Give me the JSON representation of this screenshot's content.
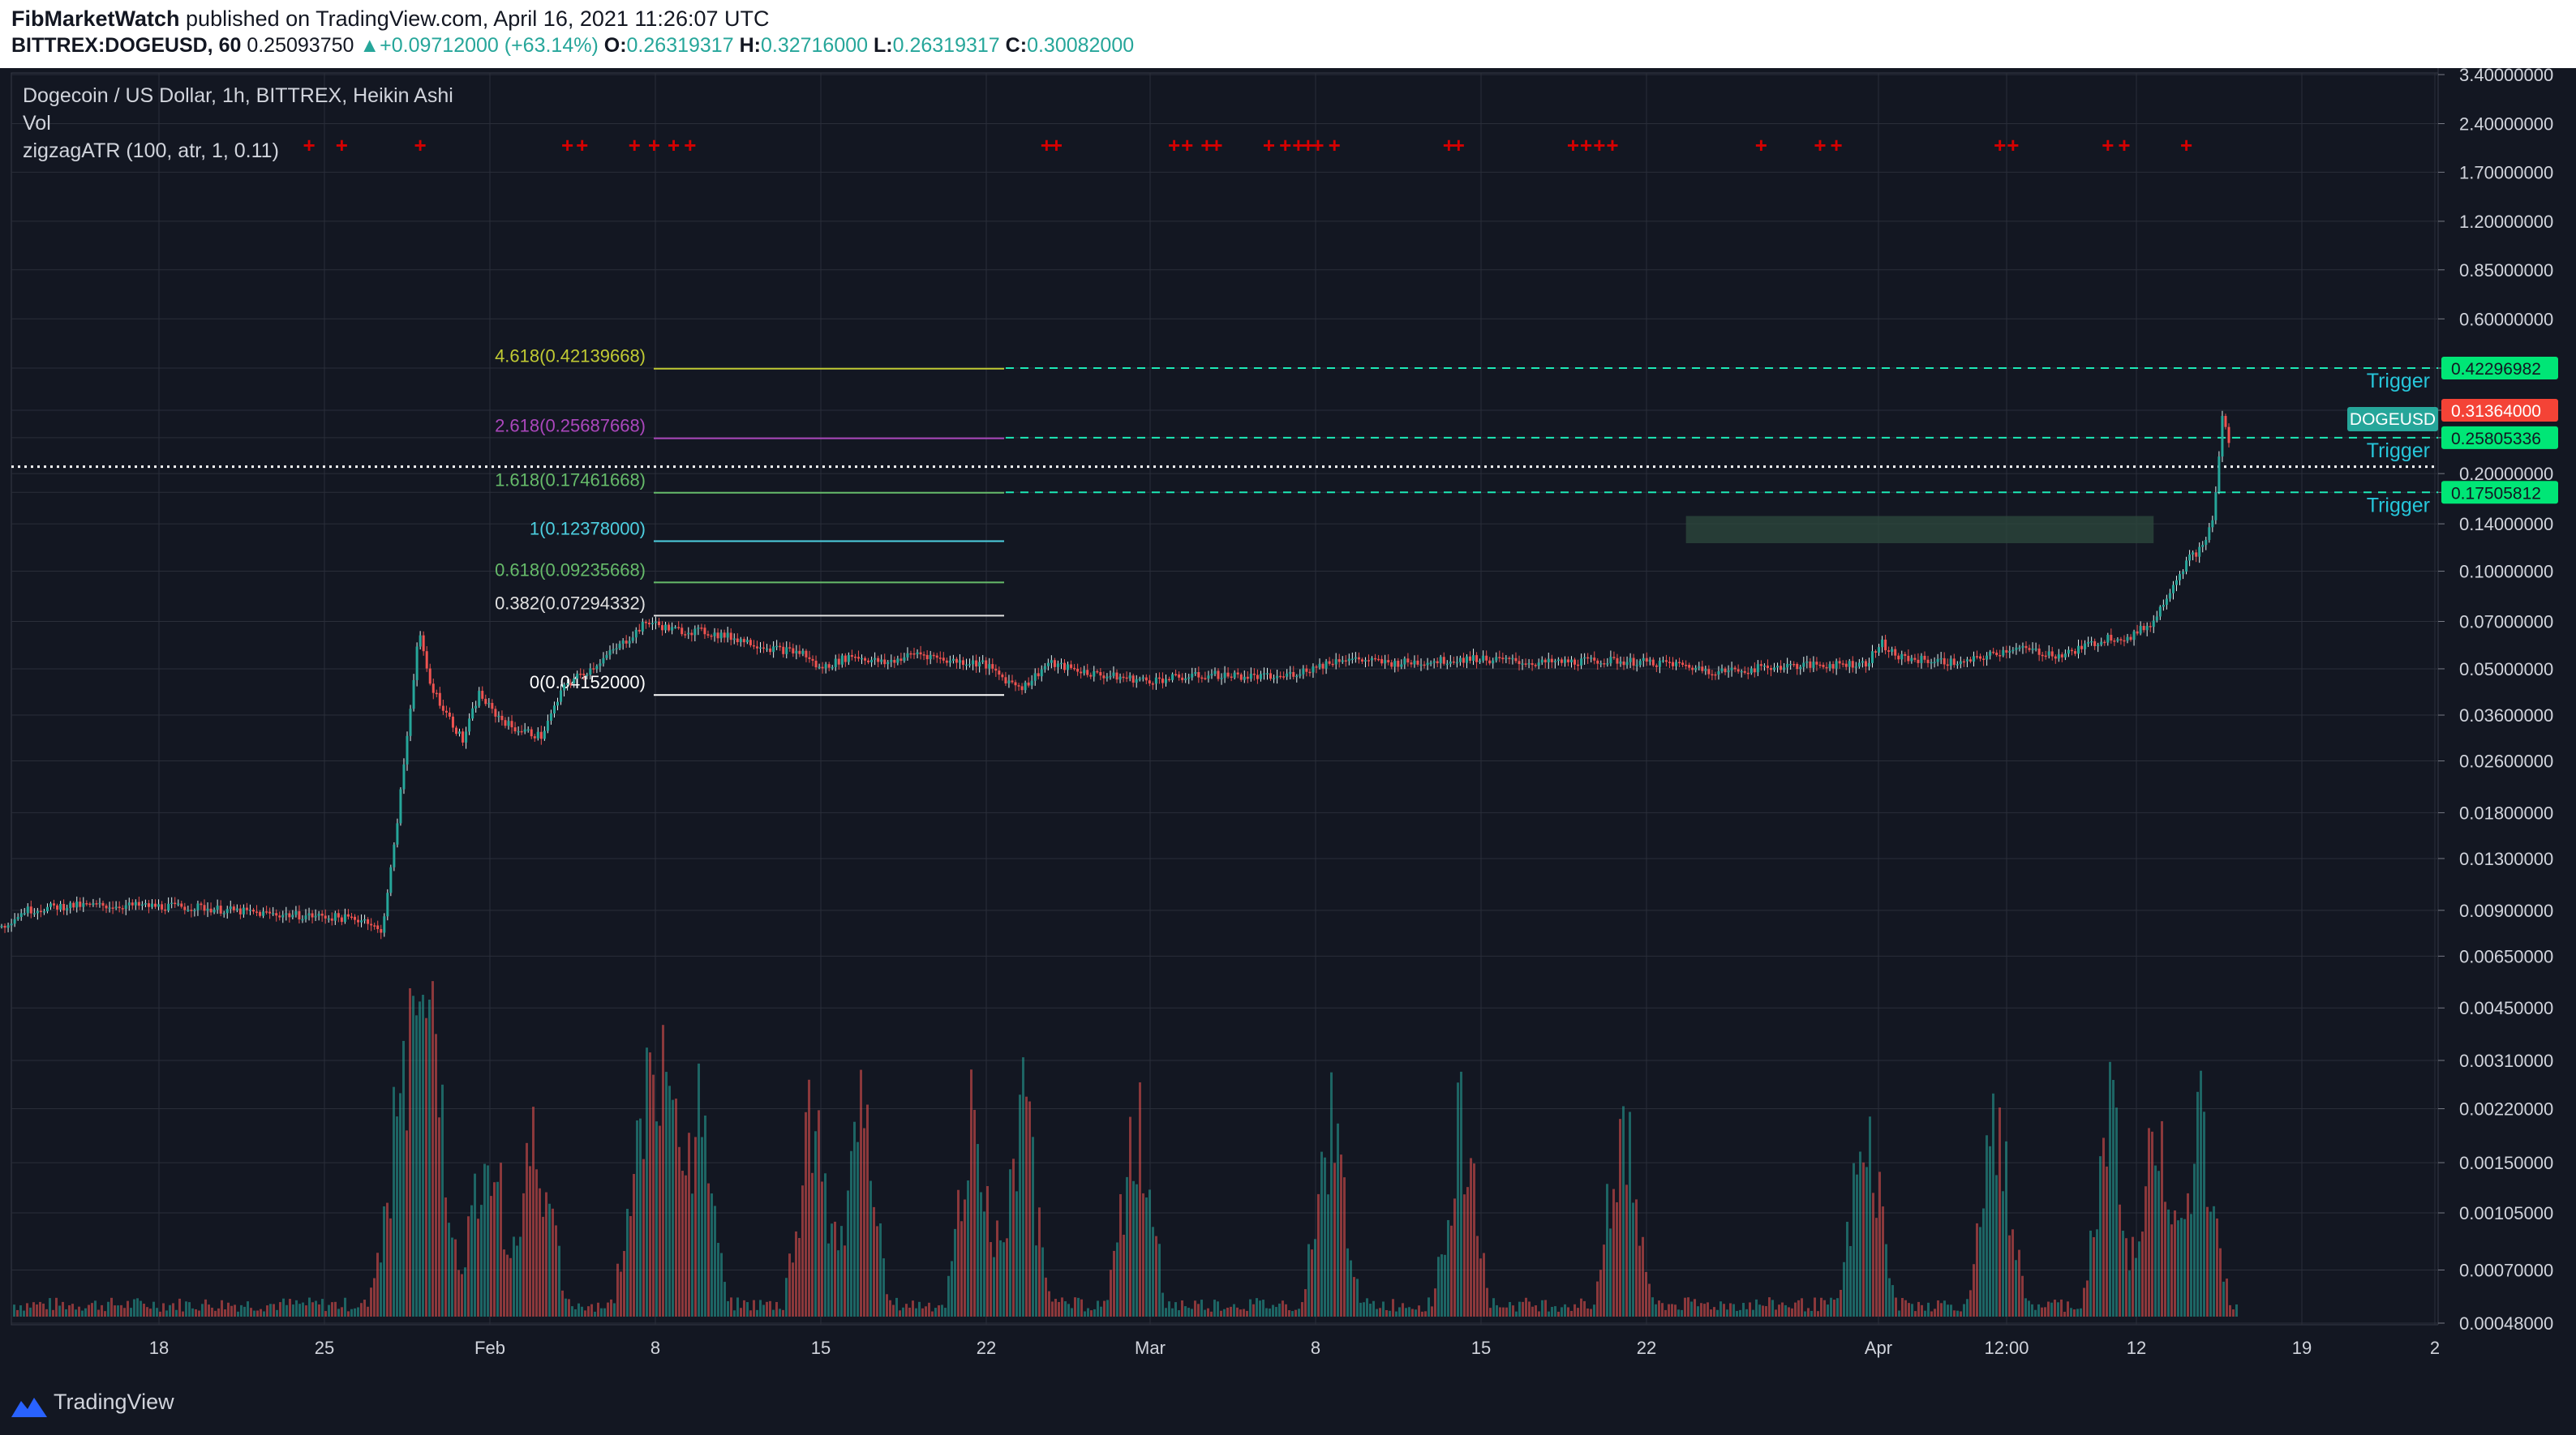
{
  "header": {
    "publisher": "FibMarketWatch",
    "published_text": " published on TradingView.com, April 16, 2021 11:26:07 UTC",
    "symbol": "BITTREX:DOGEUSD, 60",
    "price": "0.25093750",
    "change_arrow": "▲",
    "change": "+0.09712000 (+63.14%)",
    "o_label": "O:",
    "o_value": "0.26319317",
    "h_label": "H:",
    "h_value": "0.32716000",
    "l_label": "L:",
    "l_value": "0.26319317",
    "c_label": "C:",
    "c_value": "0.30082000"
  },
  "legend": {
    "title": "Dogecoin / US Dollar, 1h, BITTREX, Heikin Ashi",
    "vol": "Vol",
    "indicator": "zigzagATR (100, atr, 1, 0.11)"
  },
  "footer": {
    "brand": "TradingView"
  },
  "colors": {
    "background": "#131722",
    "grid": "#2a2e39",
    "up": "#26a69a",
    "down": "#ef5350",
    "candle_light": "#e0f2f1",
    "trigger": "#26c6da",
    "level_green": "#1de9b6",
    "tag_green": "#00e676",
    "tag_red": "#f44336",
    "tag_teal": "#26a69a"
  },
  "chart_data": {
    "type": "candlestick",
    "scale": "log",
    "y_ticks": [
      "3.40000000",
      "2.40000000",
      "1.70000000",
      "1.20000000",
      "0.85000000",
      "0.60000000",
      "0.42296982",
      "0.31364000",
      "0.25805336",
      "0.20000000",
      "0.17505812",
      "0.14000000",
      "0.10000000",
      "0.07000000",
      "0.05000000",
      "0.03600000",
      "0.02600000",
      "0.01800000",
      "0.01300000",
      "0.00900000",
      "0.00650000",
      "0.00450000",
      "0.00310000",
      "0.00220000",
      "0.00150000",
      "0.00105000",
      "0.00070000",
      "0.00048000"
    ],
    "x_ticks": [
      "18",
      "25",
      "Feb",
      "8",
      "15",
      "22",
      "Mar",
      "8",
      "15",
      "22",
      "Apr",
      "12:00",
      "12",
      "19",
      "2"
    ],
    "fib_levels": [
      {
        "label": "4.618(0.42139668)",
        "value": 0.42139668,
        "color": "#c0ca33"
      },
      {
        "label": "2.618(0.25687668)",
        "value": 0.25687668,
        "color": "#ab47bc"
      },
      {
        "label": "1.618(0.17461668)",
        "value": 0.17461668,
        "color": "#66bb6a"
      },
      {
        "label": "1(0.12378000)",
        "value": 0.12378,
        "color": "#4dd0e1"
      },
      {
        "label": "0.618(0.09235668)",
        "value": 0.09235668,
        "color": "#66bb6a"
      },
      {
        "label": "0.382(0.07294332)",
        "value": 0.07294332,
        "color": "#e0e0e0"
      },
      {
        "label": "0(0.04152000)",
        "value": 0.04152,
        "color": "#ffffff"
      }
    ],
    "trigger_lines": [
      {
        "label": "Trigger",
        "value": 0.42296982,
        "tag": "0.42296982"
      },
      {
        "label": "Trigger",
        "value": 0.25805336,
        "tag": "0.25805336"
      },
      {
        "label": "Trigger",
        "value": 0.17505812,
        "tag": "0.17505812"
      }
    ],
    "last_price": {
      "value": 0.31364,
      "tag": "0.31364000",
      "symbol": "DOGEUSD"
    },
    "dotted_price": 0.21,
    "price_path": [
      [
        0,
        0.008
      ],
      [
        14,
        0.009
      ],
      [
        40,
        0.0093
      ],
      [
        80,
        0.0093
      ],
      [
        120,
        0.0092
      ],
      [
        160,
        0.0088
      ],
      [
        200,
        0.0086
      ],
      [
        224,
        0.0084
      ],
      [
        232,
        0.0076
      ],
      [
        240,
        0.014
      ],
      [
        247,
        0.028
      ],
      [
        255,
        0.065
      ],
      [
        262,
        0.045
      ],
      [
        270,
        0.038
      ],
      [
        282,
        0.03
      ],
      [
        292,
        0.042
      ],
      [
        300,
        0.037
      ],
      [
        312,
        0.033
      ],
      [
        330,
        0.031
      ],
      [
        345,
        0.045
      ],
      [
        360,
        0.05
      ],
      [
        380,
        0.06
      ],
      [
        395,
        0.07
      ],
      [
        410,
        0.066
      ],
      [
        430,
        0.065
      ],
      [
        450,
        0.062
      ],
      [
        470,
        0.058
      ],
      [
        490,
        0.056
      ],
      [
        500,
        0.05
      ],
      [
        520,
        0.055
      ],
      [
        540,
        0.052
      ],
      [
        560,
        0.056
      ],
      [
        580,
        0.053
      ],
      [
        600,
        0.052
      ],
      [
        615,
        0.046
      ],
      [
        625,
        0.044
      ],
      [
        640,
        0.052
      ],
      [
        670,
        0.048
      ],
      [
        700,
        0.046
      ],
      [
        740,
        0.048
      ],
      [
        780,
        0.047
      ],
      [
        800,
        0.05
      ],
      [
        820,
        0.054
      ],
      [
        850,
        0.052
      ],
      [
        880,
        0.053
      ],
      [
        900,
        0.054
      ],
      [
        940,
        0.052
      ],
      [
        980,
        0.053
      ],
      [
        1020,
        0.052
      ],
      [
        1050,
        0.049
      ],
      [
        1090,
        0.051
      ],
      [
        1140,
        0.052
      ],
      [
        1150,
        0.06
      ],
      [
        1160,
        0.054
      ],
      [
        1200,
        0.052
      ],
      [
        1230,
        0.058
      ],
      [
        1260,
        0.055
      ],
      [
        1290,
        0.063
      ],
      [
        1300,
        0.062
      ],
      [
        1316,
        0.07
      ],
      [
        1328,
        0.092
      ],
      [
        1338,
        0.11
      ],
      [
        1346,
        0.118
      ],
      [
        1353,
        0.15
      ],
      [
        1358,
        0.3
      ],
      [
        1362,
        0.251
      ]
    ],
    "zigzag_plus_x": [
      188,
      208,
      256,
      346,
      355,
      387,
      399,
      411,
      421,
      639,
      645,
      717,
      725,
      737,
      743,
      775,
      785,
      793,
      799,
      805,
      815,
      885,
      891,
      961,
      969,
      977,
      985,
      1076,
      1112,
      1122,
      1222,
      1230,
      1288,
      1298,
      1336
    ],
    "zone": {
      "from_x": 1030,
      "to_x": 1316,
      "top": 0.148,
      "bottom": 0.122
    },
    "volume_peak_x": [
      245,
      258,
      268,
      300,
      330,
      395,
      410,
      430,
      500,
      530,
      600,
      630,
      700,
      820,
      900,
      1000,
      1150,
      1230,
      1300,
      1330,
      1356
    ]
  }
}
